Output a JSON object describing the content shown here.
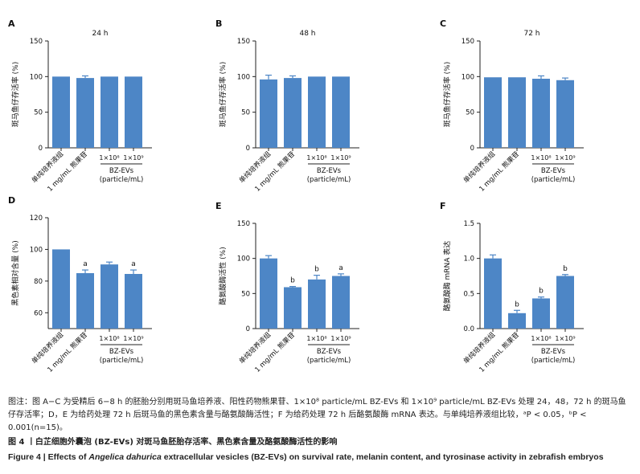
{
  "colors": {
    "bar": "#4d86c6",
    "axis": "#222222",
    "text": "#111111"
  },
  "chart_data": [
    {
      "panel": "A",
      "type": "bar",
      "title": "24 h",
      "ylabel": "斑马鱼仔存活率 (%)",
      "ylim": [
        0,
        150
      ],
      "yticks": [
        0,
        50,
        100,
        150
      ],
      "categories": [
        "单纯培养液组",
        "1 mg/mL 熊果苷",
        "1×10⁸",
        "1×10⁹"
      ],
      "group_label": [
        "BZ-EVs",
        "(particle/mL)"
      ],
      "values": [
        100,
        98,
        100,
        100
      ],
      "errors": [
        0,
        3,
        0,
        0
      ],
      "significance": [
        "",
        "",
        "",
        ""
      ]
    },
    {
      "panel": "B",
      "type": "bar",
      "title": "48 h",
      "ylabel": "斑马鱼仔存活率 (%)",
      "ylim": [
        0,
        150
      ],
      "yticks": [
        0,
        50,
        100,
        150
      ],
      "categories": [
        "单纯培养液组",
        "1 mg/mL 熊果苷",
        "1×10⁸",
        "1×10⁹"
      ],
      "group_label": [
        "BZ-EVs",
        "(particle/mL)"
      ],
      "values": [
        96,
        98,
        100,
        100
      ],
      "errors": [
        6,
        3,
        0,
        0
      ],
      "significance": [
        "",
        "",
        "",
        ""
      ]
    },
    {
      "panel": "C",
      "type": "bar",
      "title": "72 h",
      "ylabel": "斑马鱼仔存活率 (%)",
      "ylim": [
        0,
        150
      ],
      "yticks": [
        0,
        50,
        100,
        150
      ],
      "categories": [
        "单纯培养液组",
        "1 mg/mL 熊果苷",
        "1×10⁸",
        "1×10⁹"
      ],
      "group_label": [
        "BZ-EVs",
        "(particle/mL)"
      ],
      "values": [
        99,
        99,
        97,
        95
      ],
      "errors": [
        0,
        0,
        4,
        3
      ],
      "significance": [
        "",
        "",
        "",
        ""
      ]
    },
    {
      "panel": "D",
      "type": "bar",
      "title": "",
      "ylabel": "黑色素相对含量 (%)",
      "ylim": [
        50,
        120
      ],
      "yticks": [
        60,
        80,
        100,
        120
      ],
      "categories": [
        "单纯培养液组",
        "1 mg/mL 熊果苷",
        "1×10⁸",
        "1×10⁹"
      ],
      "group_label": [
        "BZ-EVs",
        "(particle/mL)"
      ],
      "values": [
        100,
        85,
        90.5,
        84.5
      ],
      "errors": [
        0,
        2,
        1.5,
        2.5
      ],
      "significance": [
        "",
        "a",
        "",
        "a"
      ]
    },
    {
      "panel": "E",
      "type": "bar",
      "title": "",
      "ylabel": "酪氨酸酶活性 (%)",
      "ylim": [
        0,
        150
      ],
      "yticks": [
        0,
        50,
        100,
        150
      ],
      "categories": [
        "单纯培养液组",
        "1 mg/mL 熊果苷",
        "1×10⁸",
        "1×10⁹"
      ],
      "group_label": [
        "BZ-EVs",
        "(particle/mL)"
      ],
      "values": [
        100,
        59,
        70,
        75
      ],
      "errors": [
        4,
        1,
        6,
        3
      ],
      "significance": [
        "",
        "b",
        "b",
        "a"
      ]
    },
    {
      "panel": "F",
      "type": "bar",
      "title": "",
      "ylabel": "酪氨酸酶 mRNA 表达",
      "ylim": [
        0,
        1.5
      ],
      "yticks": [
        0.0,
        0.5,
        1.0,
        1.5
      ],
      "categories": [
        "单纯培养液组",
        "1 mg/mL 熊果苷",
        "1×10⁸",
        "1×10⁹"
      ],
      "group_label": [
        "BZ-EVs",
        "(particle/mL)"
      ],
      "values": [
        1.0,
        0.22,
        0.43,
        0.75
      ],
      "errors": [
        0.05,
        0.04,
        0.02,
        0.02
      ],
      "significance": [
        "",
        "b",
        "b",
        "b"
      ]
    }
  ],
  "caption": {
    "note": "图注：图 A−C 为受精后 6−8 h 的胚胎分别用斑马鱼培养液、阳性药物熊果苷、1×10⁸ particle/mL BZ-EVs 和 1×10⁹ particle/mL BZ-EVs 处理 24，48，72 h 的斑马鱼仔存活率；D，E 为给药处理 72 h 后斑马鱼的黑色素含量与酪氨酸酶活性；F 为给药处理 72 h 后酪氨酸酶 mRNA 表达。与单纯培养液组比较，ᵃP < 0.05，ᵇP < 0.001(n=15)。",
    "title_cn": "图 4 丨白芷细胞外囊泡 (BZ-EVs) 对斑马鱼胚胎存活率、黑色素含量及酪氨酸酶活性的影响",
    "title_en_prefix": "Figure 4 | Effects of ",
    "title_en_species": "Angelica dahurica",
    "title_en_suffix": " extracellular vesicles (BZ-EVs) on survival rate, melanin content, and tyrosinase activity in zebrafish embryos"
  }
}
